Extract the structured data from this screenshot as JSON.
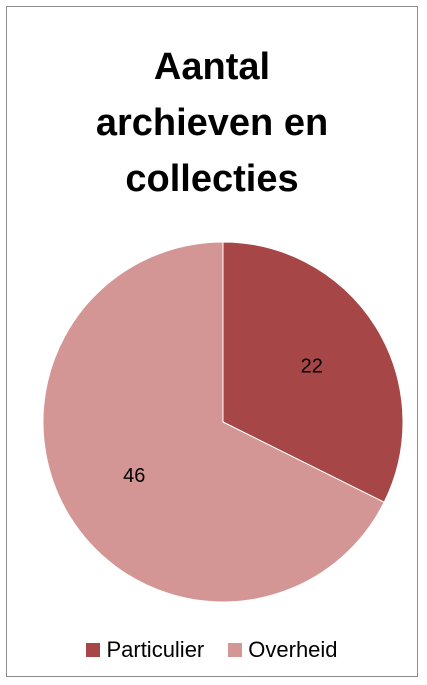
{
  "chart_data": {
    "type": "pie",
    "title": "Aantal archieven en collecties",
    "title_lines": [
      "Aantal",
      "archieven en",
      "collecties"
    ],
    "categories": [
      "Particulier",
      "Overheid"
    ],
    "values": [
      22,
      46
    ],
    "colors": [
      "#a64646",
      "#d49595"
    ],
    "data_labels": [
      "22",
      "46"
    ],
    "legend_position": "bottom"
  }
}
